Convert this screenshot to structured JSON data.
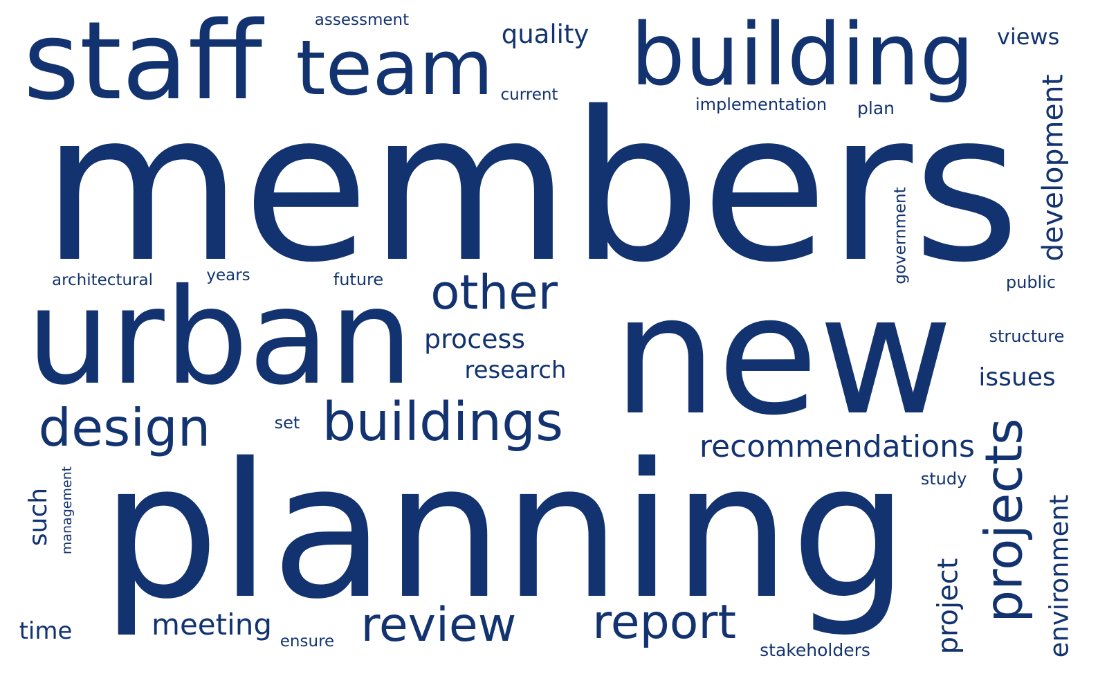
{
  "word_color": "#12336F",
  "background_color": "#FFFFFF",
  "words": [
    {
      "id": "members",
      "text": "members",
      "orientation": "horizontal"
    },
    {
      "id": "planning",
      "text": "planning",
      "orientation": "horizontal"
    },
    {
      "id": "new",
      "text": "new",
      "orientation": "horizontal"
    },
    {
      "id": "building",
      "text": "building",
      "orientation": "horizontal"
    },
    {
      "id": "urban",
      "text": "urban",
      "orientation": "horizontal"
    },
    {
      "id": "staff",
      "text": "staff",
      "orientation": "horizontal"
    },
    {
      "id": "team",
      "text": "team",
      "orientation": "horizontal"
    },
    {
      "id": "projects",
      "text": "projects",
      "orientation": "vertical"
    },
    {
      "id": "other",
      "text": "other",
      "orientation": "horizontal"
    },
    {
      "id": "buildings",
      "text": "buildings",
      "orientation": "horizontal"
    },
    {
      "id": "design",
      "text": "design",
      "orientation": "horizontal"
    },
    {
      "id": "report",
      "text": "report",
      "orientation": "horizontal"
    },
    {
      "id": "review",
      "text": "review",
      "orientation": "horizontal"
    },
    {
      "id": "recommendations",
      "text": "recommendations",
      "orientation": "horizontal"
    },
    {
      "id": "development",
      "text": "development",
      "orientation": "vertical"
    },
    {
      "id": "process",
      "text": "process",
      "orientation": "horizontal"
    },
    {
      "id": "research",
      "text": "research",
      "orientation": "horizontal"
    },
    {
      "id": "meeting",
      "text": "meeting",
      "orientation": "horizontal"
    },
    {
      "id": "quality",
      "text": "quality",
      "orientation": "horizontal"
    },
    {
      "id": "issues",
      "text": "issues",
      "orientation": "horizontal"
    },
    {
      "id": "project",
      "text": "project",
      "orientation": "vertical"
    },
    {
      "id": "environment",
      "text": "environment",
      "orientation": "vertical"
    },
    {
      "id": "such",
      "text": "such",
      "orientation": "vertical"
    },
    {
      "id": "views",
      "text": "views",
      "orientation": "horizontal"
    },
    {
      "id": "time",
      "text": "time",
      "orientation": "horizontal"
    },
    {
      "id": "implementation",
      "text": "implementation",
      "orientation": "horizontal"
    },
    {
      "id": "stakeholders",
      "text": "stakeholders",
      "orientation": "horizontal"
    },
    {
      "id": "architectural",
      "text": "architectural",
      "orientation": "horizontal"
    },
    {
      "id": "current",
      "text": "current",
      "orientation": "horizontal"
    },
    {
      "id": "assessment",
      "text": "assessment",
      "orientation": "horizontal"
    },
    {
      "id": "future",
      "text": "future",
      "orientation": "horizontal"
    },
    {
      "id": "structure",
      "text": "structure",
      "orientation": "horizontal"
    },
    {
      "id": "public",
      "text": "public",
      "orientation": "horizontal"
    },
    {
      "id": "plan",
      "text": "plan",
      "orientation": "horizontal"
    },
    {
      "id": "years",
      "text": "years",
      "orientation": "horizontal"
    },
    {
      "id": "study",
      "text": "study",
      "orientation": "horizontal"
    },
    {
      "id": "ensure",
      "text": "ensure",
      "orientation": "horizontal"
    },
    {
      "id": "management",
      "text": "management",
      "orientation": "vertical"
    },
    {
      "id": "government",
      "text": "government",
      "orientation": "vertical"
    },
    {
      "id": "set",
      "text": "set",
      "orientation": "horizontal"
    }
  ]
}
